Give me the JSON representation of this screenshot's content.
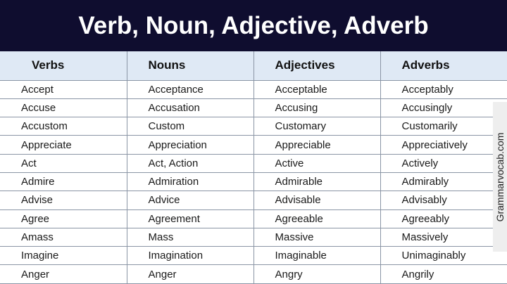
{
  "title": "Verb, Noun, Adjective, Adverb",
  "headers": [
    "Verbs",
    "Nouns",
    "Adjectives",
    "Adverbs"
  ],
  "rows": [
    [
      "Accept",
      "Acceptance",
      "Acceptable",
      "Acceptably"
    ],
    [
      "Accuse",
      "Accusation",
      "Accusing",
      "Accusingly"
    ],
    [
      "Accustom",
      "Custom",
      "Customary",
      "Customarily"
    ],
    [
      "Appreciate",
      "Appreciation",
      "Appreciable",
      "Appreciatively"
    ],
    [
      "Act",
      "Act, Action",
      "Active",
      "Actively"
    ],
    [
      "Admire",
      "Admiration",
      "Admirable",
      "Admirably"
    ],
    [
      "Advise",
      "Advice",
      "Advisable",
      "Advisably"
    ],
    [
      "Agree",
      "Agreement",
      "Agreeable",
      "Agreeably"
    ],
    [
      "Amass",
      "Mass",
      "Massive",
      "Massively"
    ],
    [
      "Imagine",
      "Imagination",
      "Imaginable",
      "Unimaginably"
    ],
    [
      "Anger",
      "Anger",
      "Angry",
      "Angrily"
    ]
  ],
  "watermark": "Grammarvocab.com",
  "colors": {
    "title_bg": "#0f0d2f",
    "header_bg": "#dfe9f5"
  }
}
